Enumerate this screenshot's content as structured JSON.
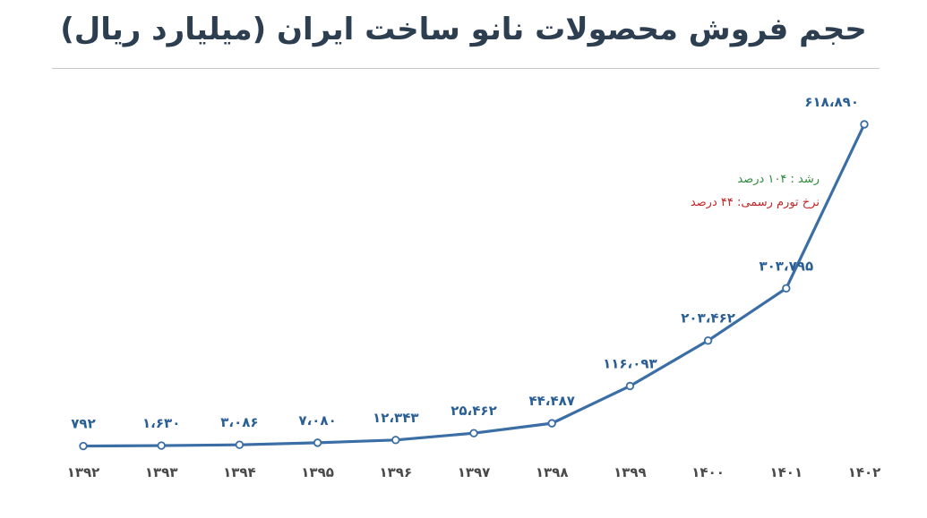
{
  "chart_data": {
    "type": "line",
    "title": "حجم فروش محصولات نانو ساخت ایران (میلیارد ریال)",
    "categories": [
      "۱۳۹۲",
      "۱۳۹۳",
      "۱۳۹۴",
      "۱۳۹۵",
      "۱۳۹۶",
      "۱۳۹۷",
      "۱۳۹۸",
      "۱۳۹۹",
      "۱۴۰۰",
      "۱۴۰۱",
      "۱۴۰۲"
    ],
    "x": [
      1392,
      1393,
      1394,
      1395,
      1396,
      1397,
      1398,
      1399,
      1400,
      1401,
      1402
    ],
    "values": [
      792,
      1630,
      3086,
      7080,
      12343,
      25462,
      44487,
      116093,
      203462,
      303795,
      618890
    ],
    "data_labels": [
      "۷۹۲",
      "۱،۶۳۰",
      "۳،۰۸۶",
      "۷،۰۸۰",
      "۱۲،۳۴۳",
      "۲۵،۴۶۲",
      "۴۴،۴۸۷",
      "۱۱۶،۰۹۳",
      "۲۰۳،۴۶۲",
      "۳۰۳،۷۹۵",
      "۶۱۸،۸۹۰"
    ],
    "ylim": [
      0,
      620000
    ],
    "grid": false,
    "legend": "none",
    "line_color": "#3a6ea5",
    "annotations": [
      {
        "text": "رشد :  ۱۰۴ درصد",
        "color": "#2e8b3c"
      },
      {
        "text": "نرخ تورم رسمی:  ۴۴ درصد",
        "color": "#c0282a"
      }
    ]
  }
}
